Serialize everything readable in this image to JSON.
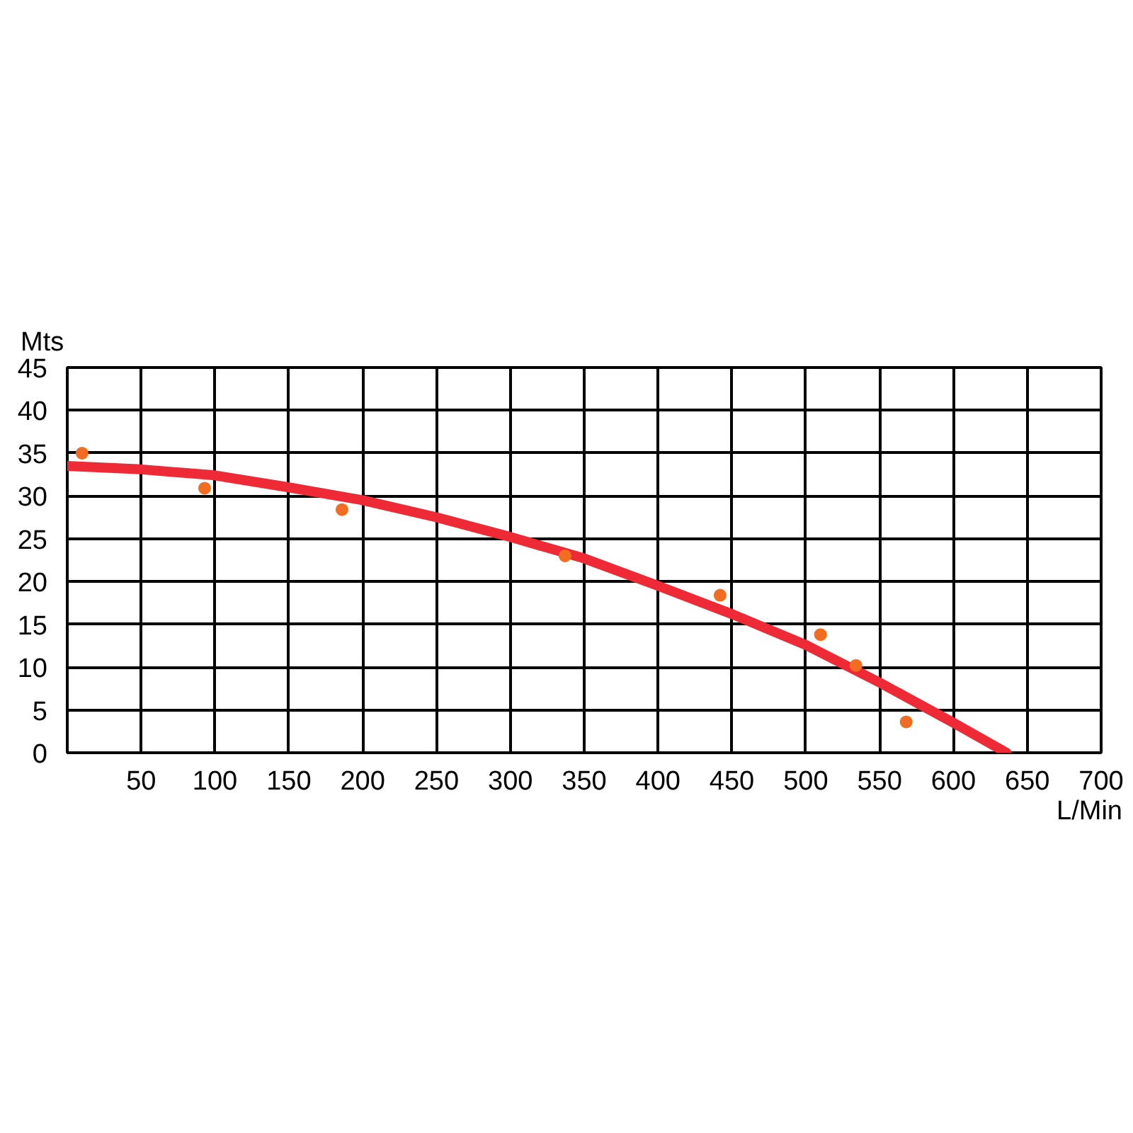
{
  "chart_data": {
    "type": "line",
    "xlabel": "L/Min",
    "ylabel": "Mts",
    "xlim": [
      0,
      700
    ],
    "ylim": [
      0,
      45
    ],
    "xticks": [
      50,
      100,
      150,
      200,
      250,
      300,
      350,
      400,
      450,
      500,
      550,
      600,
      650,
      700
    ],
    "yticks": [
      0,
      5,
      10,
      15,
      20,
      25,
      30,
      35,
      40,
      45
    ],
    "grid": true,
    "series": [
      {
        "color": "#ee2a36",
        "x": [
          0,
          50,
          100,
          150,
          200,
          250,
          300,
          350,
          400,
          450,
          500,
          550,
          600,
          636
        ],
        "values": [
          33.5,
          33.1,
          32.4,
          31.0,
          29.5,
          27.5,
          25.2,
          22.7,
          19.5,
          16.2,
          12.6,
          8.2,
          3.5,
          0
        ]
      },
      {
        "type": "scatter",
        "color": "#f26d21",
        "marker": "circle",
        "x": [
          10,
          93,
          186,
          337,
          442,
          510,
          534,
          568
        ],
        "values": [
          35.0,
          30.9,
          28.4,
          23.0,
          18.4,
          13.8,
          10.2,
          3.6
        ]
      }
    ]
  }
}
